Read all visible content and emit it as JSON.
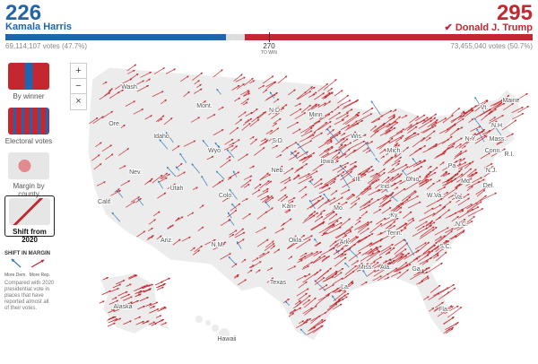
{
  "header": {
    "harris": {
      "electoral": 226,
      "name": "Kamala Harris",
      "votes": "69,114,107 votes (47.7%)",
      "color": "#2166ac"
    },
    "trump": {
      "electoral": 295,
      "name": "Donald J. Trump",
      "votes": "73,455,040 votes (50.7%)",
      "color": "#c4272f"
    },
    "threshold": {
      "value": 270,
      "label": "TO WIN"
    }
  },
  "controls": {
    "zoom": [
      "+",
      "−",
      "×"
    ]
  },
  "sidebar": {
    "views": [
      "By winner",
      "Electoral votes",
      "Margin by county",
      "Shift from 2020"
    ],
    "selected": 3
  },
  "legend": {
    "title": "SHIFT IN MARGIN",
    "dem": "More Dem.",
    "rep": "More Rep.",
    "note": "Compared with 2020 presidential vote in places that have reported almost all of their votes."
  },
  "map": {
    "states": [
      "Wash.",
      "Ore.",
      "Calif.",
      "Nev.",
      "Idaho",
      "Mont.",
      "Wyo.",
      "Utah",
      "Ariz.",
      "Colo.",
      "N.M.",
      "N.D.",
      "S.D.",
      "Neb.",
      "Kan.",
      "Okla.",
      "Texas",
      "Minn.",
      "Iowa",
      "Mo.",
      "Ark.",
      "La.",
      "Wis.",
      "Ill.",
      "Mich.",
      "Ind.",
      "Ohio",
      "Ky.",
      "Tenn.",
      "Miss.",
      "Ala.",
      "Ga.",
      "Fla.",
      "S.C.",
      "N.C.",
      "Va.",
      "W.Va.",
      "Pa.",
      "N.Y.",
      "Vt.",
      "N.H.",
      "Maine",
      "Mass.",
      "Conn.",
      "R.I.",
      "N.J.",
      "Del.",
      "Md.",
      "Alaska",
      "Hawaii"
    ]
  }
}
